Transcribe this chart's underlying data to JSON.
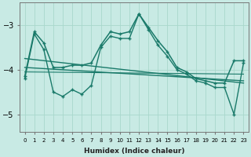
{
  "xlabel": "Humidex (Indice chaleur)",
  "bg_color": "#c8eae4",
  "grid_color": "#a8d8cc",
  "line_color": "#1a7a6a",
  "xlim": [
    -0.5,
    23.5
  ],
  "ylim": [
    -5.4,
    -2.5
  ],
  "yticks": [
    -5,
    -4,
    -3
  ],
  "xticks": [
    0,
    1,
    2,
    3,
    4,
    5,
    6,
    7,
    8,
    9,
    10,
    11,
    12,
    13,
    14,
    15,
    16,
    17,
    18,
    19,
    20,
    21,
    22,
    23
  ],
  "xtick_labels": [
    "0",
    "1",
    "2",
    "3",
    "4",
    "5",
    "6",
    "7",
    "8",
    "9",
    "10",
    "11",
    "12",
    "13",
    "14",
    "15",
    "16",
    "17",
    "18",
    "19",
    "20",
    "21",
    "22",
    "23"
  ],
  "jagged_y": [
    -4.2,
    -3.2,
    -3.55,
    -4.5,
    -4.6,
    -4.45,
    -4.55,
    -4.35,
    -3.5,
    -3.25,
    -3.3,
    -3.3,
    -2.75,
    -3.1,
    -3.45,
    -3.7,
    -4.0,
    -4.1,
    -4.25,
    -4.3,
    -4.4,
    -4.4,
    -5.0,
    -3.85
  ],
  "smooth_y": [
    -4.15,
    -3.15,
    -3.4,
    -3.95,
    -3.95,
    -3.9,
    -3.9,
    -3.85,
    -3.45,
    -3.15,
    -3.2,
    -3.15,
    -2.75,
    -3.05,
    -3.35,
    -3.6,
    -3.95,
    -4.05,
    -4.2,
    -4.25,
    -4.3,
    -4.3,
    -3.8,
    -3.8
  ],
  "trend1_x": [
    0,
    23
  ],
  "trend1_y": [
    -3.75,
    -4.3
  ],
  "trend2_x": [
    0,
    23
  ],
  "trend2_y": [
    -3.95,
    -4.25
  ],
  "trend3_x": [
    0,
    23
  ],
  "trend3_y": [
    -4.05,
    -4.1
  ]
}
